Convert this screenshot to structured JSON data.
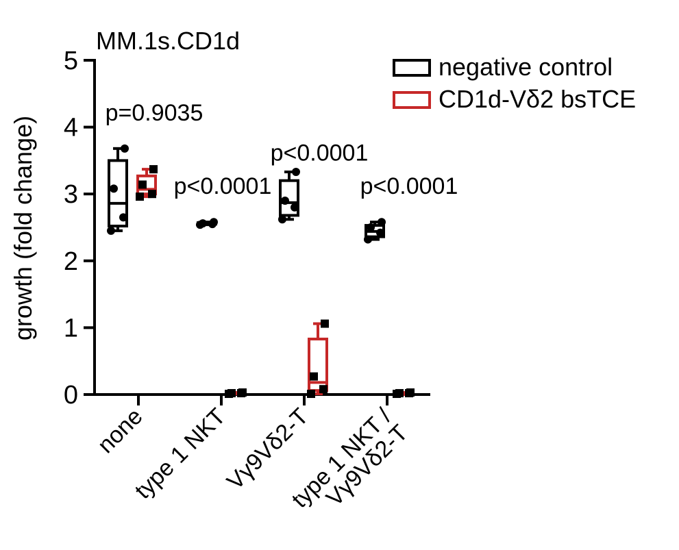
{
  "chart_data": {
    "type": "box",
    "title": "MM.1s.CD1d",
    "xlabel": "",
    "ylabel": "growth (fold change)",
    "ylim": [
      0,
      5
    ],
    "yticks": [
      "0",
      "1",
      "2",
      "3",
      "4",
      "5"
    ],
    "grid": false,
    "legend_position": "top-right",
    "categories": [
      [
        "none"
      ],
      [
        "type 1 NKT"
      ],
      [
        "Vγ9Vδ2-T"
      ],
      [
        "type 1 NKT /",
        "Vγ9Vδ2-T"
      ]
    ],
    "series": [
      {
        "name": "negative control",
        "color": "#000000",
        "boxes": [
          {
            "min": 2.45,
            "q1": 2.52,
            "median": 2.86,
            "q3": 3.5,
            "max": 3.68,
            "points": [
              2.45,
              2.65,
              3.08,
              3.68
            ]
          },
          {
            "min": 2.54,
            "q1": 2.55,
            "median": 2.56,
            "q3": 2.57,
            "max": 2.58,
            "points": [
              2.54,
              2.55,
              2.56,
              2.58
            ]
          },
          {
            "min": 2.62,
            "q1": 2.68,
            "median": 2.87,
            "q3": 3.2,
            "max": 3.33,
            "points": [
              2.62,
              2.8,
              2.9,
              3.33
            ]
          },
          {
            "min": 2.32,
            "q1": 2.36,
            "median": 2.44,
            "q3": 2.53,
            "max": 2.58,
            "points": [
              2.32,
              2.42,
              2.5,
              2.58
            ]
          }
        ]
      },
      {
        "name": "CD1d-Vδ2 bsTCE",
        "color": "#c62828",
        "boxes": [
          {
            "min": 2.96,
            "q1": 3.0,
            "median": 3.07,
            "q3": 3.27,
            "max": 3.37,
            "points": [
              2.96,
              3.0,
              3.14,
              3.37
            ]
          },
          {
            "min": 0.01,
            "q1": 0.01,
            "median": 0.02,
            "q3": 0.03,
            "max": 0.03,
            "points": [
              0.01,
              0.02,
              0.02,
              0.03
            ]
          },
          {
            "min": 0.01,
            "q1": 0.06,
            "median": 0.18,
            "q3": 0.83,
            "max": 1.06,
            "points": [
              0.01,
              0.08,
              0.27,
              1.06
            ]
          },
          {
            "min": 0.01,
            "q1": 0.01,
            "median": 0.02,
            "q3": 0.02,
            "max": 0.03,
            "points": [
              0.01,
              0.02,
              0.02,
              0.03
            ]
          }
        ]
      }
    ],
    "annotations": [
      {
        "text": "p=0.9035",
        "group": 0,
        "y": 4.1
      },
      {
        "text": "p<0.0001",
        "group": 1,
        "y": 3.0
      },
      {
        "text": "p<0.0001",
        "group": 2,
        "y": 3.5
      },
      {
        "text": "p<0.0001",
        "group": 3,
        "y": 3.0
      }
    ]
  }
}
